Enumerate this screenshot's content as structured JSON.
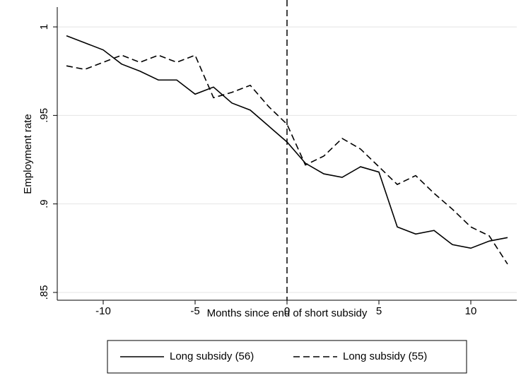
{
  "chart_data": {
    "type": "line",
    "x_label": "Months since end of short subsidy",
    "y_label": "Employment rate",
    "x": [
      -12,
      -11,
      -10,
      -9,
      -8,
      -7,
      -6,
      -5,
      -4,
      -3,
      -2,
      -1,
      0,
      1,
      2,
      3,
      4,
      5,
      6,
      7,
      8,
      9,
      10,
      11,
      12
    ],
    "series": [
      {
        "name": "Long subsidy (56)",
        "color": "#000000",
        "dash": "solid",
        "values": [
          0.995,
          0.991,
          0.987,
          0.979,
          0.975,
          0.97,
          0.97,
          0.962,
          0.966,
          0.957,
          0.953,
          0.944,
          0.935,
          0.923,
          0.917,
          0.915,
          0.921,
          0.918,
          0.887,
          0.883,
          0.885,
          0.877,
          0.875,
          0.879,
          0.881
        ]
      },
      {
        "name": "Long subsidy (55)",
        "color": "#000000",
        "dash": "dashed",
        "values": [
          0.978,
          0.976,
          0.98,
          0.984,
          0.98,
          0.984,
          0.98,
          0.984,
          0.96,
          0.963,
          0.967,
          0.955,
          0.945,
          0.922,
          0.927,
          0.937,
          0.931,
          0.921,
          0.911,
          0.916,
          0.906,
          0.897,
          0.887,
          0.882,
          0.866
        ]
      }
    ],
    "xlim": [
      -12.5,
      12.5
    ],
    "xticks": [
      -10,
      -5,
      0,
      5,
      10
    ],
    "ylim": [
      0.8456,
      1.0112
    ],
    "yticks": [
      {
        "value": 0.85,
        "label": ".85"
      },
      {
        "value": 0.9,
        "label": ".9"
      },
      {
        "value": 0.95,
        "label": ".95"
      },
      1
    ],
    "vline": 0,
    "grid": true,
    "legend": "bottom"
  }
}
